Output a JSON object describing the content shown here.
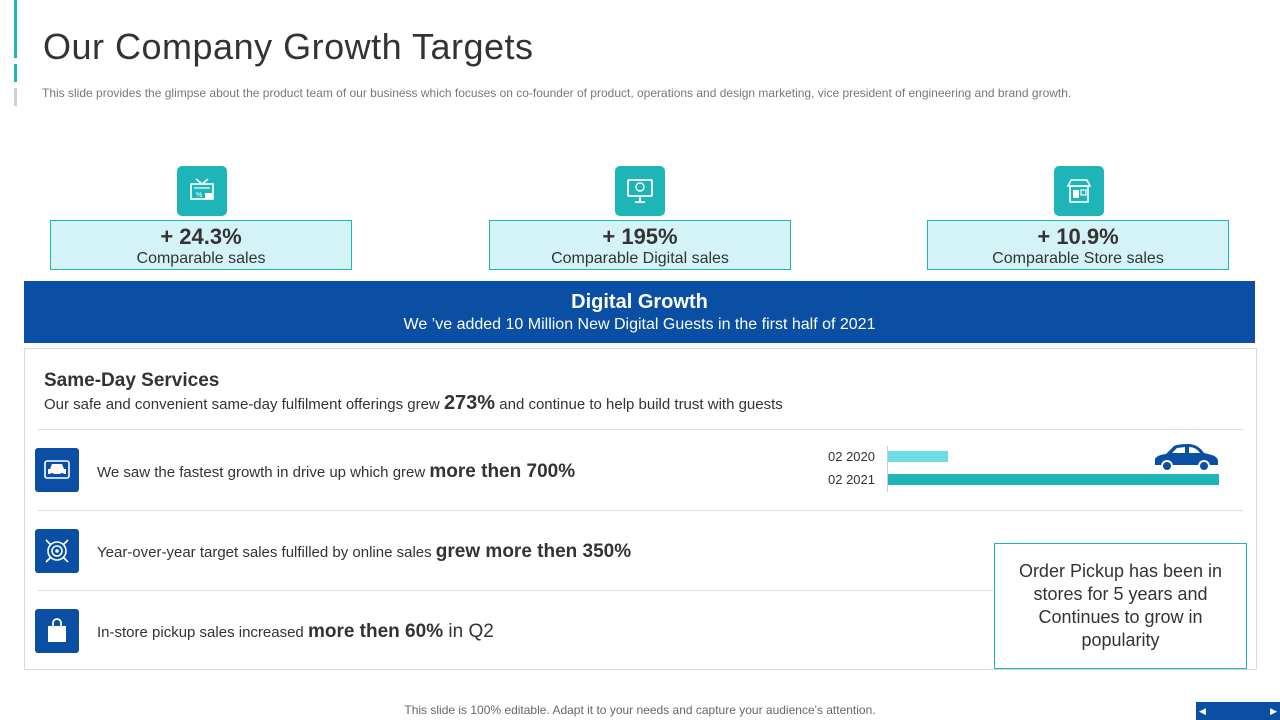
{
  "header": {
    "title": "Our Company Growth Targets",
    "subtitle": "This slide provides  the glimpse about the product team of our business which focuses on co-founder  of product,  operations and design marketing, vice  president of engineering  and brand growth."
  },
  "stats": [
    {
      "value": "+ 24.3%",
      "label": "Comparable sales",
      "icon": "shopping-sale-icon"
    },
    {
      "value": "+ 195%",
      "label": "Comparable Digital sales",
      "icon": "online-payment-monitor-icon"
    },
    {
      "value": "+ 10.9%",
      "label": "Comparable Store sales",
      "icon": "storefront-icon"
    }
  ],
  "banner": {
    "title": "Digital Growth",
    "text": "We ’ve added 10 Million New Digital Guests  in the first half  of 2021"
  },
  "services": {
    "title": "Same-Day Services",
    "desc_before": "Our safe and convenient same-day fulfilment offerings grew ",
    "desc_highlight": "273%",
    "desc_after": " and continue to help build trust with guests"
  },
  "rows": [
    {
      "icon": "car-icon",
      "text": "We saw the fastest growth in drive up which grew ",
      "highlight": "more then 700%",
      "tail": ""
    },
    {
      "icon": "target-icon",
      "text": "Year-over-year  target sales fulfilled  by online sales ",
      "highlight": "grew more then 350%",
      "tail": ""
    },
    {
      "icon": "shopping-bag-icon",
      "text": "In-store pickup  sales increased ",
      "highlight": "more then 60%",
      "tail": " in Q2"
    }
  ],
  "chart_data": {
    "type": "bar",
    "orientation": "horizontal",
    "categories": [
      "02 2020",
      "02 2021"
    ],
    "values": [
      18,
      100
    ],
    "xlim": [
      0,
      100
    ],
    "colors": [
      "#6cdde3",
      "#1eb5b8"
    ],
    "annotation_icon": "car-icon"
  },
  "callout": {
    "text": "Order Pickup has been in stores for 5 years and Continues to grow in popularity"
  },
  "footer": {
    "text": "This slide is 100% editable. Adapt it to your needs and capture your audience's attention."
  },
  "colors": {
    "teal": "#1eb5b8",
    "light_teal": "#d4f3f7",
    "navy": "#0a4fa3",
    "accent_gray": "#cccccc"
  }
}
